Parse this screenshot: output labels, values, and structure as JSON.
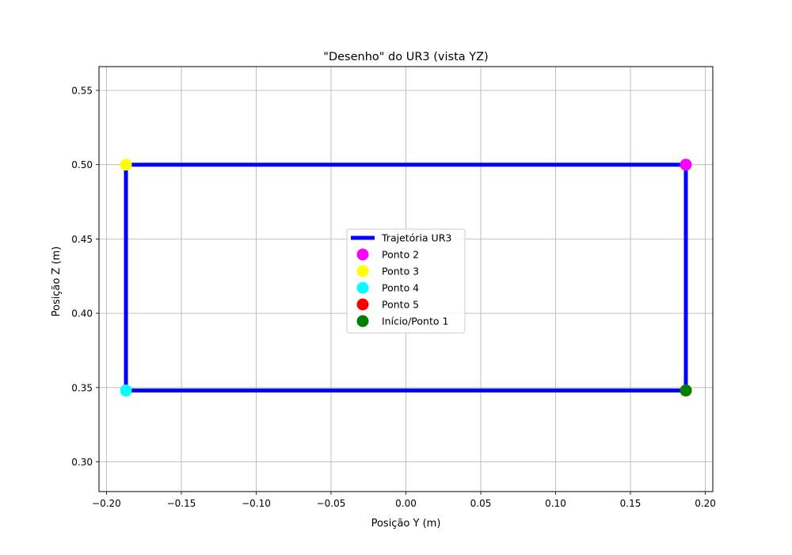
{
  "chart_data": {
    "type": "line",
    "title": "\"Desenho\" do UR3 (vista YZ)",
    "xlabel": "Posição Y (m)",
    "ylabel": "Posição Z (m)",
    "xlim": [
      -0.205,
      0.205
    ],
    "ylim": [
      0.28,
      0.566
    ],
    "xticks": [
      -0.2,
      -0.15,
      -0.1,
      -0.05,
      0.0,
      0.05,
      0.1,
      0.15,
      0.2
    ],
    "xtick_labels": [
      "−0.20",
      "−0.15",
      "−0.10",
      "−0.05",
      "0.00",
      "0.05",
      "0.10",
      "0.15",
      "0.20"
    ],
    "yticks": [
      0.3,
      0.35,
      0.4,
      0.45,
      0.5,
      0.55
    ],
    "ytick_labels": [
      "0.30",
      "0.35",
      "0.40",
      "0.45",
      "0.50",
      "0.55"
    ],
    "grid": true,
    "legend_position": "center",
    "series": [
      {
        "name": "Trajetória UR3",
        "kind": "line",
        "color": "#0000ff",
        "x": [
          0.187,
          0.187,
          -0.187,
          -0.187,
          0.187
        ],
        "y": [
          0.348,
          0.5,
          0.5,
          0.348,
          0.348
        ]
      },
      {
        "name": "Ponto 2",
        "kind": "marker",
        "color": "#ff00ff",
        "x": [
          0.187
        ],
        "y": [
          0.5
        ]
      },
      {
        "name": "Ponto 3",
        "kind": "marker",
        "color": "#ffff00",
        "x": [
          -0.187
        ],
        "y": [
          0.5
        ]
      },
      {
        "name": "Ponto 4",
        "kind": "marker",
        "color": "#00ffff",
        "x": [
          -0.187
        ],
        "y": [
          0.348
        ]
      },
      {
        "name": "Ponto 5",
        "kind": "marker",
        "color": "#ff0000",
        "x": [
          0.187
        ],
        "y": [
          0.348
        ]
      },
      {
        "name": "Início/Ponto 1",
        "kind": "marker",
        "color": "#008000",
        "x": [
          0.187
        ],
        "y": [
          0.348
        ]
      }
    ]
  }
}
